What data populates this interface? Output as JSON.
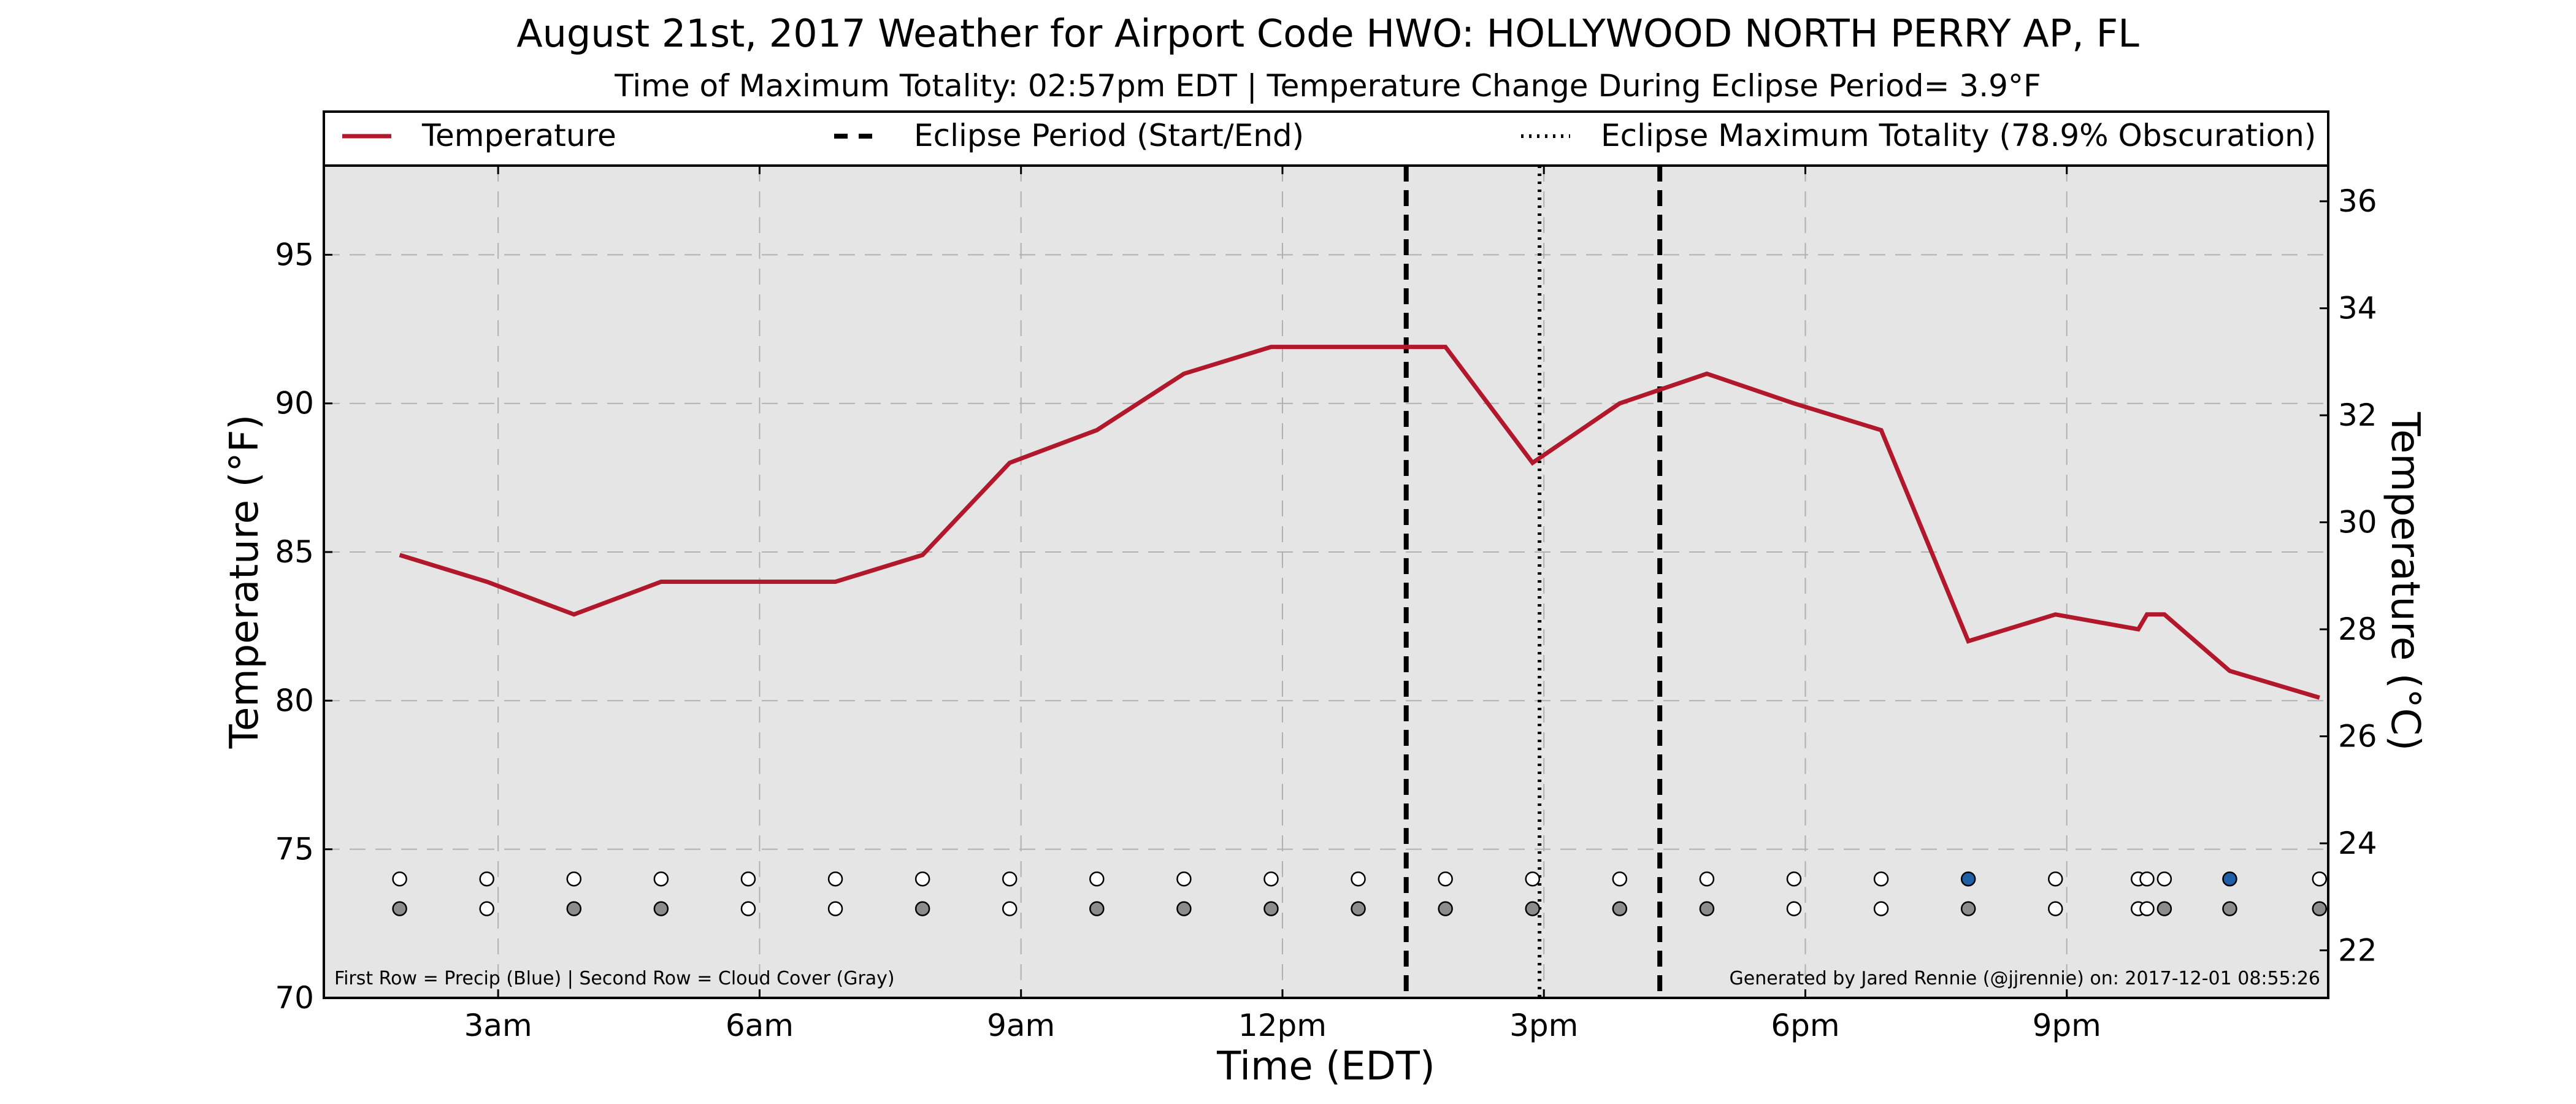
{
  "chart_data": {
    "type": "line",
    "title": "August 21st, 2017 Weather for Airport Code HWO: HOLLYWOOD NORTH PERRY AP, FL",
    "subtitle": "Time of Maximum Totality: 02:57pm EDT | Temperature Change During Eclipse Period= 3.9°F",
    "xlabel": "Time (EDT)",
    "ylabel": "Temperature (°F)",
    "ylabel_right": "Temperature (°C)",
    "xlim_hours": [
      1.0,
      24.0
    ],
    "ylim": [
      70,
      98
    ],
    "ylim_right": [
      21.11,
      36.67
    ],
    "grid": true,
    "legend_position": "top",
    "x_ticks": [
      {
        "hour": 3,
        "label": "3am"
      },
      {
        "hour": 6,
        "label": "6am"
      },
      {
        "hour": 9,
        "label": "9am"
      },
      {
        "hour": 12,
        "label": "12pm"
      },
      {
        "hour": 15,
        "label": "3pm"
      },
      {
        "hour": 18,
        "label": "6pm"
      },
      {
        "hour": 21,
        "label": "9pm"
      }
    ],
    "y_ticks": [
      70,
      75,
      80,
      85,
      90,
      95
    ],
    "y_ticks_right": [
      22,
      24,
      26,
      28,
      30,
      32,
      34,
      36
    ],
    "series": [
      {
        "name": "Temperature",
        "color": "#b2182b",
        "x_hours": [
          1.87,
          2.87,
          3.87,
          4.87,
          5.87,
          6.87,
          7.87,
          8.87,
          9.87,
          10.87,
          11.87,
          12.87,
          13.87,
          14.87,
          15.87,
          16.87,
          17.87,
          18.87,
          19.87,
          20.87,
          21.82,
          21.92,
          22.12,
          22.87,
          23.9
        ],
        "values": [
          84.9,
          84.0,
          82.9,
          84.0,
          84.0,
          84.0,
          84.9,
          88.0,
          89.1,
          91.0,
          91.9,
          91.9,
          91.9,
          88.0,
          90.0,
          91.0,
          90.0,
          89.1,
          82.0,
          82.9,
          82.4,
          82.9,
          82.9,
          81.0,
          80.1
        ]
      }
    ],
    "eclipse_lines": [
      {
        "name": "Eclipse Period (Start/End)",
        "style": "dashed",
        "hours": [
          13.42,
          16.33
        ]
      },
      {
        "name": "Eclipse Maximum Totality (78.9% Obscuration)",
        "style": "dotted",
        "hours": [
          14.95
        ]
      }
    ],
    "markers": {
      "row1_y": 74,
      "row2_y": 73,
      "row1_label": "Precip (Blue)",
      "row2_label": "Cloud Cover (Gray)",
      "row1": [
        {
          "h": 1.87,
          "c": "white"
        },
        {
          "h": 2.87,
          "c": "white"
        },
        {
          "h": 3.87,
          "c": "white"
        },
        {
          "h": 4.87,
          "c": "white"
        },
        {
          "h": 5.87,
          "c": "white"
        },
        {
          "h": 6.87,
          "c": "white"
        },
        {
          "h": 7.87,
          "c": "white"
        },
        {
          "h": 8.87,
          "c": "white"
        },
        {
          "h": 9.87,
          "c": "white"
        },
        {
          "h": 10.87,
          "c": "white"
        },
        {
          "h": 11.87,
          "c": "white"
        },
        {
          "h": 12.87,
          "c": "white"
        },
        {
          "h": 13.87,
          "c": "white"
        },
        {
          "h": 14.87,
          "c": "white"
        },
        {
          "h": 15.87,
          "c": "white"
        },
        {
          "h": 16.87,
          "c": "white"
        },
        {
          "h": 17.87,
          "c": "white"
        },
        {
          "h": 18.87,
          "c": "white"
        },
        {
          "h": 19.87,
          "c": "blue"
        },
        {
          "h": 20.87,
          "c": "white"
        },
        {
          "h": 21.82,
          "c": "white"
        },
        {
          "h": 21.92,
          "c": "white"
        },
        {
          "h": 22.12,
          "c": "white"
        },
        {
          "h": 22.87,
          "c": "blue"
        },
        {
          "h": 23.9,
          "c": "white"
        }
      ],
      "row2": [
        {
          "h": 1.87,
          "c": "gray"
        },
        {
          "h": 2.87,
          "c": "white"
        },
        {
          "h": 3.87,
          "c": "gray"
        },
        {
          "h": 4.87,
          "c": "gray"
        },
        {
          "h": 5.87,
          "c": "white"
        },
        {
          "h": 6.87,
          "c": "white"
        },
        {
          "h": 7.87,
          "c": "gray"
        },
        {
          "h": 8.87,
          "c": "white"
        },
        {
          "h": 9.87,
          "c": "gray"
        },
        {
          "h": 10.87,
          "c": "gray"
        },
        {
          "h": 11.87,
          "c": "gray"
        },
        {
          "h": 12.87,
          "c": "gray"
        },
        {
          "h": 13.87,
          "c": "gray"
        },
        {
          "h": 14.87,
          "c": "gray"
        },
        {
          "h": 15.87,
          "c": "gray"
        },
        {
          "h": 16.87,
          "c": "gray"
        },
        {
          "h": 17.87,
          "c": "white"
        },
        {
          "h": 18.87,
          "c": "white"
        },
        {
          "h": 19.87,
          "c": "gray"
        },
        {
          "h": 20.87,
          "c": "white"
        },
        {
          "h": 21.82,
          "c": "white"
        },
        {
          "h": 21.92,
          "c": "white"
        },
        {
          "h": 22.12,
          "c": "gray"
        },
        {
          "h": 22.87,
          "c": "gray"
        },
        {
          "h": 23.9,
          "c": "gray"
        }
      ]
    },
    "footnote_left": "First Row = Precip (Blue) | Second Row = Cloud Cover (Gray)",
    "footnote_right": "Generated by Jared Rennie (@jjrennie) on: 2017-12-01 08:55:26",
    "colors": {
      "plot_bg": "#e5e5e5",
      "grid": "#b0b0b0",
      "precip_blue": "#1f5fa8",
      "cloud_gray": "#8c8c8c"
    }
  },
  "legend": {
    "temperature_label": "Temperature",
    "eclipse_period_label": "Eclipse Period (Start/End)",
    "max_totality_label": "Eclipse Maximum Totality (78.9% Obscuration)"
  }
}
